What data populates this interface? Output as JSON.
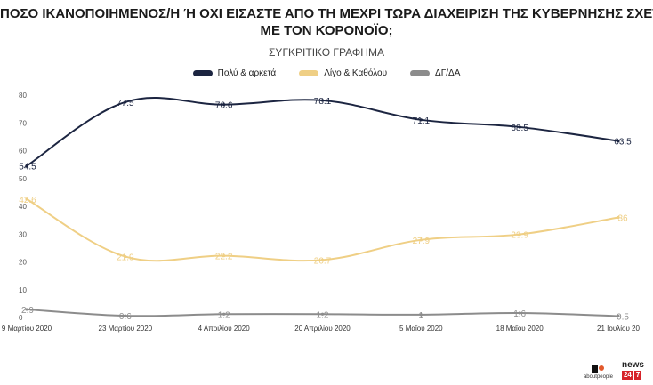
{
  "chart_data": {
    "type": "line",
    "title_lines": [
      "ΠΟΣΟ ΙΚΑΝΟΠΟΙΗΜΕΝΟΣ/Η Ή ΟΧΙ ΕΙΣΑΣΤΕ ΑΠΟ ΤΗ ΜΕΧΡΙ ΤΩΡΑ ΔΙΑΧΕΙΡΙΣΗ ΤΗΣ ΚΥΒΕΡΝΗΣΗΣ ΣΧΕΤΙΚΑ",
      "ΜΕ ΤΟΝ ΚΟΡΟΝΟΪΟ;"
    ],
    "subtitle": "ΣΥΓΚΡΙΤΙΚΟ ΓΡΑΦΗΜΑ",
    "categories": [
      "9 Μαρτίου 2020",
      "23 Μαρτίου 2020",
      "4 Απριλίου 2020",
      "20 Απριλίου 2020",
      "5 Μαΐου 2020",
      "18 Μαΐου 2020",
      "21 Ιουλίου 20"
    ],
    "ylim": [
      0,
      80
    ],
    "yticks": [
      0,
      10,
      20,
      30,
      40,
      50,
      60,
      70,
      80
    ],
    "grid": false,
    "legend_position": "top",
    "series": [
      {
        "name": "Πολύ & αρκετά",
        "color": "#1c2541",
        "values": [
          54.5,
          77.5,
          76.6,
          78.1,
          71.1,
          68.5,
          63.5
        ],
        "labels": [
          "54.5",
          "77.5",
          "76.6",
          "78.1",
          "71.1",
          "68.5",
          "63.5"
        ]
      },
      {
        "name": "Λίγο & Καθόλου",
        "color": "#efcf85",
        "values": [
          42.6,
          21.9,
          22.2,
          20.7,
          27.9,
          29.9,
          36
        ],
        "labels": [
          "42.6",
          "21.9",
          "22.2",
          "20.7",
          "27.9",
          "29.9",
          "36"
        ]
      },
      {
        "name": "ΔΓ/ΔΑ",
        "color": "#8c8c8c",
        "values": [
          2.9,
          0.6,
          1.2,
          1.2,
          1,
          1.6,
          0.5
        ],
        "labels": [
          "2.9",
          "0.6",
          "1.2",
          "1.2",
          "1",
          "1.6",
          "0.5"
        ]
      }
    ]
  },
  "branding": {
    "aboutpeople_label": "aboutpeople",
    "news_word": "news",
    "news_digits": [
      "24",
      "7"
    ]
  }
}
